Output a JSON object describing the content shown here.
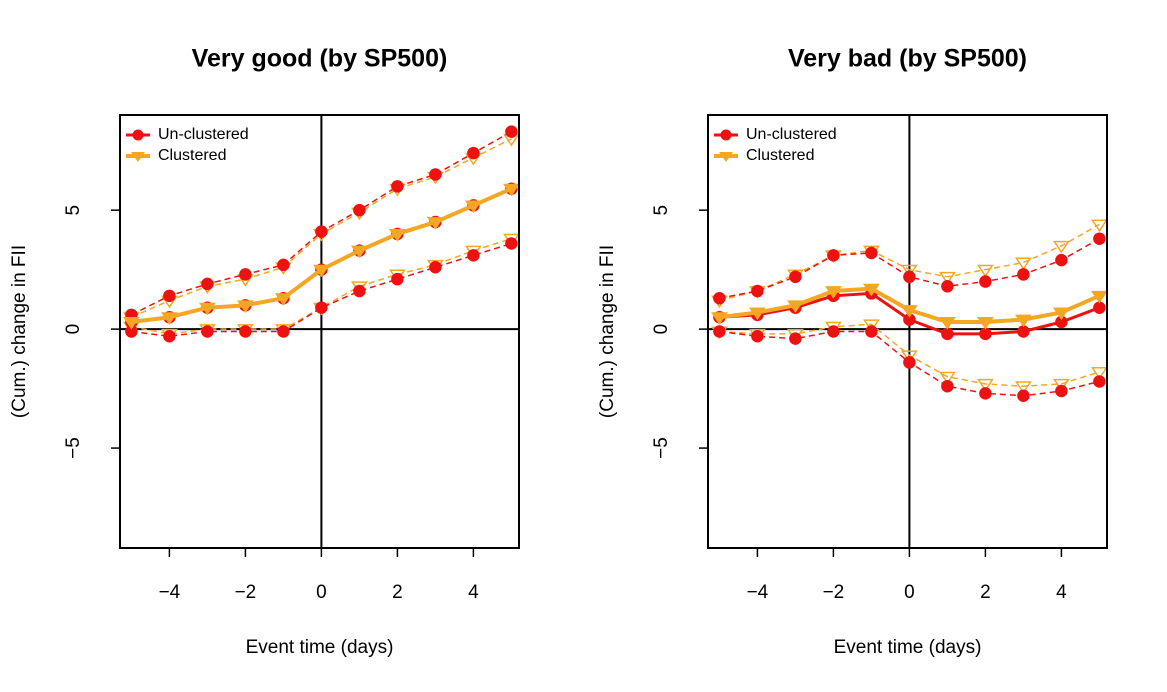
{
  "chart_data": [
    {
      "type": "line",
      "title": "Very good (by SP500)",
      "xlabel": "Event time (days)",
      "ylabel": "(Cum.) change in FII",
      "x": [
        -5,
        -4,
        -3,
        -2,
        -1,
        0,
        1,
        2,
        3,
        4,
        5
      ],
      "series": [
        {
          "name": "Un-clustered",
          "color": "#ee1111",
          "marker": "circle",
          "values": [
            0.3,
            0.5,
            0.9,
            1.0,
            1.3,
            2.5,
            3.3,
            4.0,
            4.5,
            5.2,
            5.9
          ],
          "lower": [
            -0.1,
            -0.3,
            -0.1,
            -0.1,
            -0.1,
            0.9,
            1.6,
            2.1,
            2.6,
            3.1,
            3.6
          ],
          "upper": [
            0.6,
            1.4,
            1.9,
            2.3,
            2.7,
            4.1,
            5.0,
            6.0,
            6.5,
            7.4,
            8.3
          ]
        },
        {
          "name": "Clustered",
          "color": "#f5a623",
          "marker": "triangle-down",
          "values": [
            0.3,
            0.5,
            0.9,
            1.0,
            1.3,
            2.5,
            3.3,
            4.0,
            4.5,
            5.2,
            5.9
          ],
          "lower": [
            0.1,
            -0.2,
            0.0,
            0.0,
            0.0,
            0.9,
            1.8,
            2.3,
            2.7,
            3.3,
            3.8
          ],
          "upper": [
            0.5,
            1.2,
            1.8,
            2.1,
            2.6,
            4.0,
            4.9,
            5.9,
            6.4,
            7.2,
            8.0
          ]
        }
      ],
      "xlim": [
        -5.3,
        5.2
      ],
      "ylim": [
        -9.2,
        9.0
      ],
      "xticks": [
        {
          "value": -4,
          "label": "−4"
        },
        {
          "value": -2,
          "label": "−2"
        },
        0,
        2,
        4
      ],
      "yticks": [
        {
          "value": -5,
          "label": "−5"
        },
        0,
        5
      ],
      "reference_lines": {
        "x": 0,
        "y": 0
      },
      "legend": "top-left"
    },
    {
      "type": "line",
      "title": "Very bad (by SP500)",
      "xlabel": "Event time (days)",
      "ylabel": "(Cum.) change in FII",
      "x": [
        -5,
        -4,
        -3,
        -2,
        -1,
        0,
        1,
        2,
        3,
        4,
        5
      ],
      "series": [
        {
          "name": "Un-clustered",
          "color": "#ee1111",
          "marker": "circle",
          "values": [
            0.5,
            0.6,
            0.9,
            1.4,
            1.5,
            0.4,
            -0.2,
            -0.2,
            -0.1,
            0.3,
            0.9
          ],
          "lower": [
            -0.1,
            -0.3,
            -0.4,
            -0.1,
            -0.1,
            -1.4,
            -2.4,
            -2.7,
            -2.8,
            -2.6,
            -2.2
          ],
          "upper": [
            1.3,
            1.6,
            2.2,
            3.1,
            3.2,
            2.2,
            1.8,
            2.0,
            2.3,
            2.9,
            3.8
          ]
        },
        {
          "name": "Clustered",
          "color": "#f5a623",
          "marker": "triangle-down",
          "values": [
            0.5,
            0.7,
            1.0,
            1.6,
            1.7,
            0.8,
            0.3,
            0.3,
            0.4,
            0.7,
            1.4
          ],
          "lower": [
            -0.1,
            -0.2,
            -0.2,
            0.1,
            0.2,
            -1.1,
            -2.0,
            -2.3,
            -2.4,
            -2.3,
            -1.8
          ],
          "upper": [
            1.2,
            1.6,
            2.3,
            3.1,
            3.3,
            2.5,
            2.2,
            2.5,
            2.8,
            3.5,
            4.4
          ]
        }
      ],
      "xlim": [
        -5.3,
        5.2
      ],
      "ylim": [
        -9.2,
        9.0
      ],
      "xticks": [
        {
          "value": -4,
          "label": "−4"
        },
        {
          "value": -2,
          "label": "−2"
        },
        0,
        2,
        4
      ],
      "yticks": [
        {
          "value": -5,
          "label": "−5"
        },
        0,
        5
      ],
      "reference_lines": {
        "x": 0,
        "y": 0
      },
      "legend": "top-left"
    }
  ]
}
